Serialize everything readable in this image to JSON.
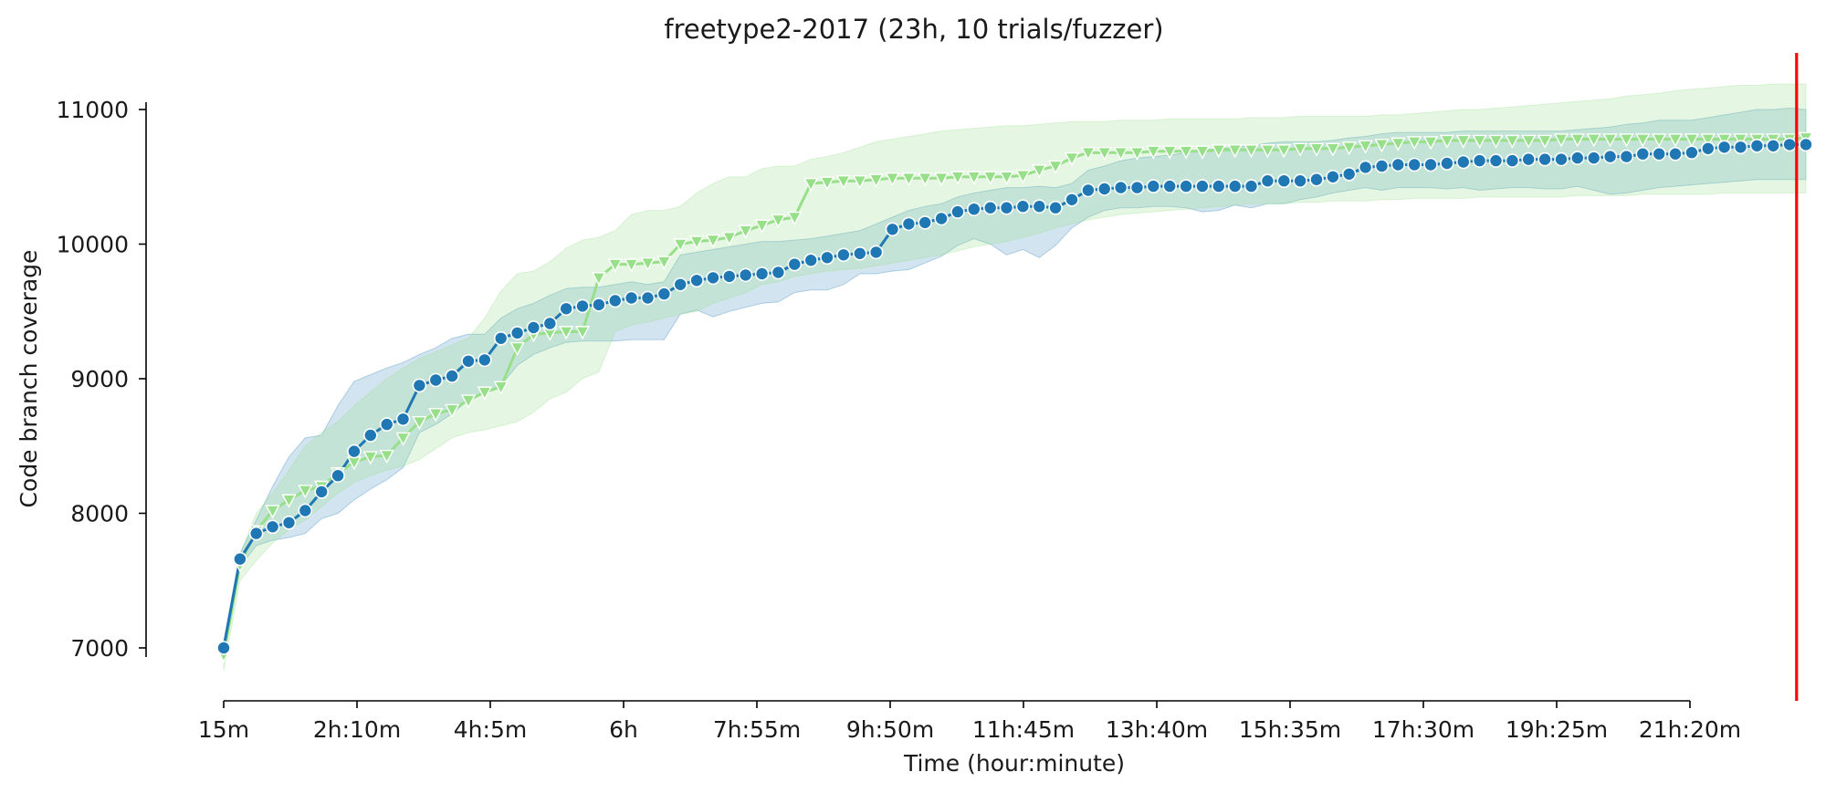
{
  "chart_data": {
    "type": "line",
    "title": "freetype2-2017 (23h, 10 trials/fuzzer)",
    "xlabel": "Time (hour:minute)",
    "ylabel": "Code branch coverage",
    "x_unit": "minutes",
    "xlim": [
      15,
      1380
    ],
    "ylim": [
      6650,
      11400
    ],
    "x_ticks": [
      {
        "value": 15,
        "label": "15m"
      },
      {
        "value": 130,
        "label": "2h:10m"
      },
      {
        "value": 245,
        "label": "4h:5m"
      },
      {
        "value": 360,
        "label": "6h"
      },
      {
        "value": 475,
        "label": "7h:55m"
      },
      {
        "value": 590,
        "label": "9h:50m"
      },
      {
        "value": 705,
        "label": "11h:45m"
      },
      {
        "value": 820,
        "label": "13h:40m"
      },
      {
        "value": 935,
        "label": "15h:35m"
      },
      {
        "value": 1050,
        "label": "17h:30m"
      },
      {
        "value": 1165,
        "label": "19h:25m"
      },
      {
        "value": 1280,
        "label": "21h:20m"
      }
    ],
    "y_ticks": [
      {
        "value": 7000,
        "label": "7000"
      },
      {
        "value": 8000,
        "label": "8000"
      },
      {
        "value": 9000,
        "label": "9000"
      },
      {
        "value": 10000,
        "label": "10000"
      },
      {
        "value": 11000,
        "label": "11000"
      }
    ],
    "grid": false,
    "legend": "none",
    "vline": {
      "x": 1372,
      "color": "#ff0000"
    },
    "series": [
      {
        "color": "#1f77b4",
        "marker": "circle",
        "values": [
          7000,
          7660,
          7850,
          7900,
          7930,
          8020,
          8160,
          8280,
          8460,
          8580,
          8660,
          8700,
          8950,
          8990,
          9020,
          9130,
          9140,
          9300,
          9340,
          9380,
          9410,
          9520,
          9540,
          9550,
          9580,
          9600,
          9600,
          9630,
          9700,
          9730,
          9750,
          9760,
          9770,
          9780,
          9790,
          9850,
          9880,
          9900,
          9920,
          9930,
          9940,
          10110,
          10150,
          10160,
          10190,
          10240,
          10260,
          10270,
          10270,
          10280,
          10280,
          10270,
          10330,
          10400,
          10410,
          10420,
          10420,
          10430,
          10430,
          10430,
          10430,
          10430,
          10430,
          10430,
          10470,
          10470,
          10470,
          10480,
          10500,
          10520,
          10570,
          10580,
          10590,
          10590,
          10590,
          10600,
          10610,
          10620,
          10620,
          10620,
          10630,
          10630,
          10630,
          10640,
          10640,
          10650,
          10650,
          10670,
          10670,
          10670,
          10680,
          10710,
          10720,
          10720,
          10730,
          10730,
          10740,
          10740
        ],
        "upper": [
          7050,
          7700,
          7950,
          8200,
          8420,
          8560,
          8580,
          8800,
          8980,
          9030,
          9080,
          9120,
          9180,
          9230,
          9300,
          9330,
          9330,
          9450,
          9520,
          9560,
          9620,
          9670,
          9680,
          9680,
          9700,
          9720,
          9700,
          9720,
          9920,
          9940,
          9960,
          9980,
          10000,
          10020,
          10020,
          10030,
          10040,
          10060,
          10080,
          10100,
          10150,
          10200,
          10250,
          10280,
          10300,
          10350,
          10380,
          10400,
          10420,
          10420,
          10430,
          10420,
          10450,
          10550,
          10580,
          10620,
          10640,
          10650,
          10660,
          10680,
          10700,
          10710,
          10720,
          10730,
          10750,
          10760,
          10760,
          10760,
          10770,
          10790,
          10800,
          10820,
          10830,
          10830,
          10830,
          10830,
          10840,
          10840,
          10840,
          10840,
          10840,
          10840,
          10840,
          10850,
          10860,
          10870,
          10890,
          10900,
          10920,
          10920,
          10920,
          10940,
          10960,
          10980,
          11000,
          11000,
          11010,
          11000
        ],
        "lower": [
          6950,
          7600,
          7760,
          7800,
          7820,
          7850,
          7960,
          8000,
          8100,
          8180,
          8250,
          8340,
          8600,
          8660,
          8740,
          8840,
          8900,
          8950,
          9100,
          9180,
          9230,
          9270,
          9280,
          9280,
          9280,
          9290,
          9290,
          9290,
          9480,
          9510,
          9460,
          9500,
          9530,
          9560,
          9570,
          9640,
          9660,
          9660,
          9700,
          9780,
          9780,
          9800,
          9810,
          9860,
          9910,
          9990,
          10040,
          10000,
          9920,
          9960,
          9900,
          9990,
          10120,
          10200,
          10250,
          10270,
          10270,
          10280,
          10280,
          10270,
          10240,
          10250,
          10290,
          10270,
          10300,
          10300,
          10330,
          10350,
          10380,
          10400,
          10420,
          10400,
          10420,
          10420,
          10420,
          10410,
          10420,
          10400,
          10410,
          10420,
          10420,
          10410,
          10410,
          10430,
          10400,
          10370,
          10380,
          10400,
          10420,
          10430,
          10440,
          10450,
          10460,
          10470,
          10480,
          10480,
          10480,
          10480
        ]
      },
      {
        "color": "#98df8a",
        "marker": "triangle-down",
        "values": [
          6950,
          7620,
          7870,
          8020,
          8100,
          8170,
          8200,
          8300,
          8380,
          8420,
          8430,
          8560,
          8680,
          8740,
          8770,
          8840,
          8900,
          8940,
          9230,
          9330,
          9340,
          9350,
          9350,
          9750,
          9850,
          9850,
          9860,
          9870,
          10000,
          10020,
          10030,
          10050,
          10100,
          10140,
          10180,
          10200,
          10450,
          10460,
          10470,
          10470,
          10480,
          10490,
          10490,
          10490,
          10490,
          10500,
          10500,
          10500,
          10500,
          10510,
          10550,
          10580,
          10640,
          10680,
          10680,
          10680,
          10680,
          10690,
          10690,
          10690,
          10690,
          10700,
          10700,
          10700,
          10700,
          10700,
          10710,
          10710,
          10710,
          10720,
          10730,
          10740,
          10750,
          10760,
          10760,
          10770,
          10770,
          10770,
          10770,
          10770,
          10770,
          10770,
          10780,
          10780,
          10780,
          10780,
          10780,
          10780,
          10780,
          10780,
          10780,
          10780,
          10780,
          10780,
          10780,
          10780,
          10780,
          10790
        ],
        "upper": [
          7000,
          7700,
          8000,
          8150,
          8320,
          8500,
          8600,
          8680,
          8800,
          8900,
          9000,
          9080,
          9150,
          9200,
          9250,
          9300,
          9450,
          9650,
          9780,
          9800,
          9870,
          9970,
          10030,
          10050,
          10100,
          10220,
          10250,
          10250,
          10280,
          10380,
          10450,
          10500,
          10500,
          10560,
          10580,
          10580,
          10630,
          10650,
          10680,
          10720,
          10760,
          10780,
          10800,
          10820,
          10840,
          10850,
          10860,
          10870,
          10880,
          10880,
          10890,
          10900,
          10910,
          10910,
          10910,
          10920,
          10920,
          10920,
          10930,
          10930,
          10930,
          10930,
          10930,
          10940,
          10940,
          10940,
          10950,
          10950,
          10950,
          10950,
          10950,
          10960,
          10960,
          10970,
          10980,
          10990,
          11000,
          11000,
          11010,
          11020,
          11030,
          11040,
          11050,
          11060,
          11070,
          11080,
          11100,
          11110,
          11120,
          11140,
          11150,
          11160,
          11170,
          11180,
          11180,
          11190,
          11190,
          11190
        ],
        "lower": [
          6830,
          7500,
          7650,
          7780,
          7880,
          7950,
          8050,
          8150,
          8230,
          8280,
          8320,
          8350,
          8400,
          8480,
          8560,
          8600,
          8620,
          8650,
          8680,
          8750,
          8850,
          8900,
          9000,
          9050,
          9350,
          9400,
          9420,
          9450,
          9480,
          9500,
          9560,
          9600,
          9640,
          9700,
          9720,
          9760,
          9780,
          9800,
          9810,
          9820,
          9840,
          9860,
          9880,
          9900,
          9920,
          9950,
          9980,
          10000,
          10020,
          10050,
          10080,
          10120,
          10150,
          10180,
          10200,
          10220,
          10230,
          10240,
          10250,
          10260,
          10270,
          10280,
          10290,
          10300,
          10300,
          10300,
          10310,
          10310,
          10320,
          10320,
          10320,
          10330,
          10330,
          10340,
          10340,
          10340,
          10340,
          10350,
          10350,
          10350,
          10350,
          10350,
          10350,
          10360,
          10360,
          10360,
          10360,
          10370,
          10370,
          10370,
          10370,
          10370,
          10380,
          10380,
          10380,
          10380,
          10380,
          10380
        ]
      }
    ]
  }
}
